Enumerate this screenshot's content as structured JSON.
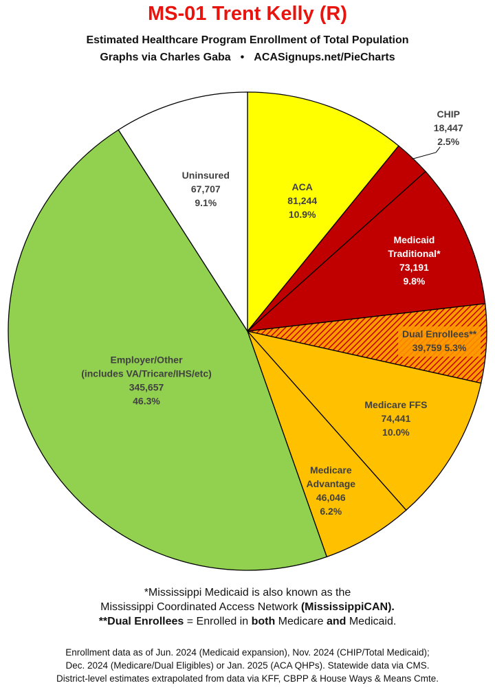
{
  "title": "MS-01 Trent Kelly (R)",
  "subtitle_line1": "Estimated Healthcare Program Enrollment of Total Population",
  "subtitle_line2_left": "Graphs via Charles Gaba",
  "subtitle_line2_sep": "•",
  "subtitle_line2_right": "ACASignups.net/PieCharts",
  "footnotes": {
    "line1": "*Mississippi Medicaid is also known as the",
    "line2_a": "Mississippi Coordinated Access Network ",
    "line2_b": "(MississippiCAN).",
    "line3_a": "**Dual Enrollees",
    "line3_b": " = Enrolled in ",
    "line3_c": "both",
    "line3_d": " Medicare ",
    "line3_e": "and",
    "line3_f": " Medicaid."
  },
  "sources": {
    "line1": "Enrollment data as of Jun. 2024 (Medicaid expansion), Nov. 2024 (CHIP/Total Medicaid);",
    "line2": "Dec. 2024 (Medicare/Dual Eligibles) or Jan. 2025 (ACA QHPs). Statewide data via CMS.",
    "line3": "District-level estimates extrapolated from data via KFF, CBPP & House Ways & Means Cmte."
  },
  "chart_data": {
    "type": "pie",
    "start": "12 o'clock",
    "direction": "clockwise",
    "slices": [
      {
        "label": [
          "ACA"
        ],
        "value": 81244,
        "value_text": "81,244",
        "pct": "10.9%",
        "color": "#ffff00",
        "text_color": "#404040",
        "pattern": "solid"
      },
      {
        "label": [
          "CHIP"
        ],
        "value": 18447,
        "value_text": "18,447",
        "pct": "2.5%",
        "color": "#c00000",
        "text_color": "#404040",
        "pattern": "solid",
        "label_outside": true
      },
      {
        "label": [
          "Medicaid",
          "Traditional*"
        ],
        "value": 73191,
        "value_text": "73,191",
        "pct": "9.8%",
        "color": "#c00000",
        "text_color": "#ffffff",
        "pattern": "solid"
      },
      {
        "label": [
          "Dual Enrollees**"
        ],
        "value": 39759,
        "value_text": "39,759",
        "pct": "5.3%",
        "color": "#c00000",
        "text_color": "#404040",
        "pattern": "hatched-orange-red"
      },
      {
        "label": [
          "Medicare FFS"
        ],
        "value": 74441,
        "value_text": "74,441",
        "pct": "10.0%",
        "color": "#ffc000",
        "text_color": "#404040",
        "pattern": "solid"
      },
      {
        "label": [
          "Medicare",
          "Advantage"
        ],
        "value": 46046,
        "value_text": "46,046",
        "pct": "6.2%",
        "color": "#ffc000",
        "text_color": "#404040",
        "pattern": "solid"
      },
      {
        "label": [
          "Employer/Other",
          "(includes VA/Tricare/IHS/etc)"
        ],
        "value": 345657,
        "value_text": "345,657",
        "pct": "46.3%",
        "color": "#92d050",
        "text_color": "#404040",
        "pattern": "solid"
      },
      {
        "label": [
          "Uninsured"
        ],
        "value": 67707,
        "value_text": "67,707",
        "pct": "9.1%",
        "color": "#ffffff",
        "text_color": "#404040",
        "pattern": "solid"
      }
    ]
  }
}
